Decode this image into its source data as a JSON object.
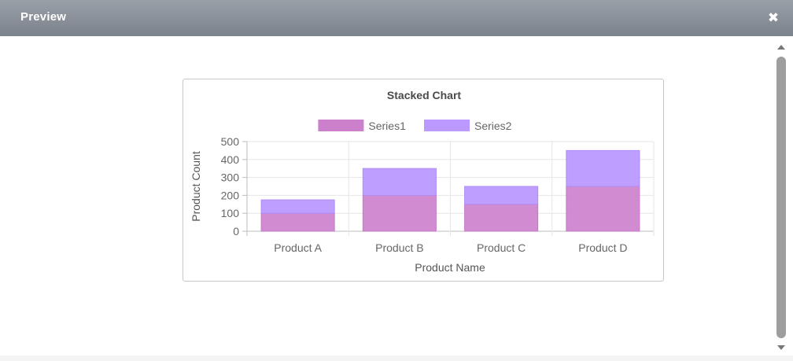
{
  "dialog": {
    "title": "Preview",
    "close_icon": "close-icon"
  },
  "colors": {
    "titlebar": "#8a9099",
    "series1": "#cc80cc",
    "series2": "#bb99ff",
    "scroll_thumb": "#9e9e9e"
  },
  "chart_data": {
    "type": "bar",
    "stacked": true,
    "title": "Stacked Chart",
    "xlabel": "Product Name",
    "ylabel": "Product Count",
    "categories": [
      "Product A",
      "Product B",
      "Product C",
      "Product D"
    ],
    "series": [
      {
        "name": "Series1",
        "values": [
          100,
          200,
          150,
          250
        ],
        "color": "#cc80cc"
      },
      {
        "name": "Series2",
        "values": [
          75,
          150,
          100,
          200
        ],
        "color": "#bb99ff"
      }
    ],
    "ylim": [
      0,
      500
    ],
    "yticks": [
      "0",
      "100",
      "200",
      "300",
      "400",
      "500"
    ],
    "grid": true,
    "legend_position": "top"
  }
}
